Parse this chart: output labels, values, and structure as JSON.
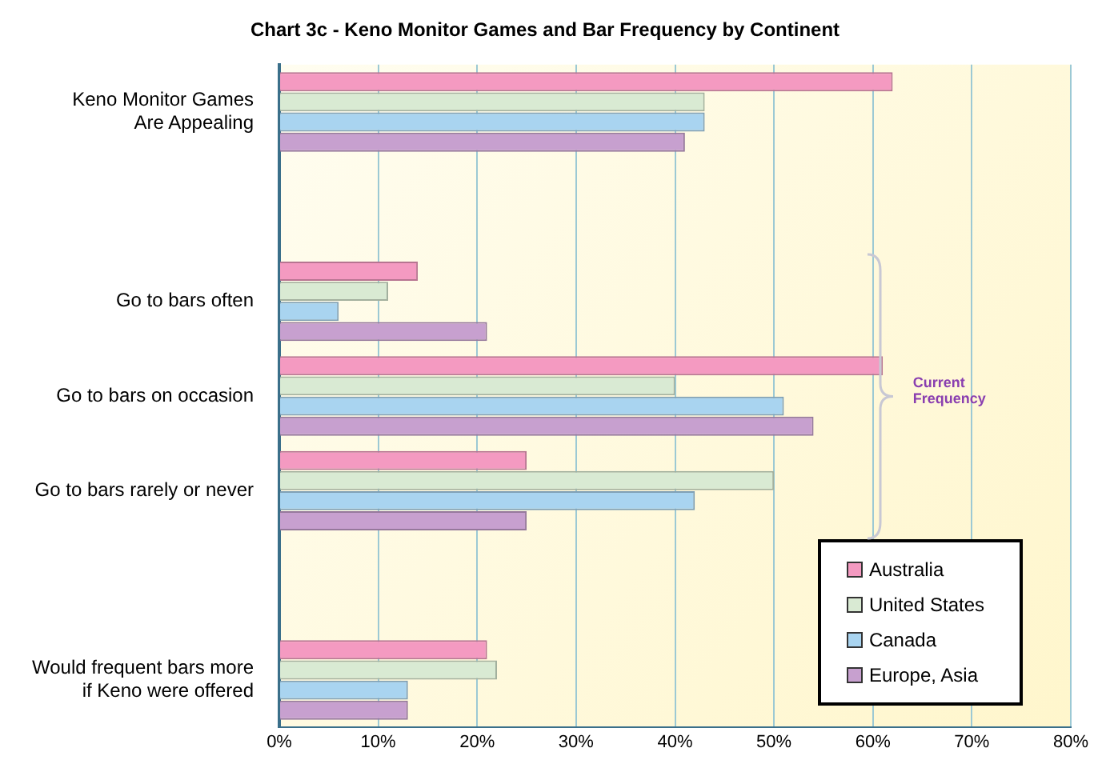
{
  "chart_data": {
    "type": "bar",
    "orientation": "horizontal",
    "title": "Chart 3c - Keno Monitor Games and Bar Frequency by Continent",
    "categories": [
      "Keno Monitor Games\nAre Appealing",
      null,
      "Go to bars often",
      "Go to bars on occasion",
      "Go to bars rarely or never",
      null,
      "Would frequent bars more\nif Keno were offered"
    ],
    "series": [
      {
        "name": "Australia",
        "color": "#f49ac1",
        "values": [
          62,
          null,
          14,
          61,
          25,
          null,
          21
        ]
      },
      {
        "name": "United States",
        "color": "#d9ead3",
        "values": [
          43,
          null,
          11,
          40,
          50,
          null,
          22
        ]
      },
      {
        "name": "Canada",
        "color": "#a9d4f0",
        "values": [
          43,
          null,
          6,
          51,
          42,
          null,
          13
        ]
      },
      {
        "name": "Europe, Asia",
        "color": "#c7a0cf",
        "values": [
          41,
          null,
          21,
          54,
          25,
          null,
          13
        ]
      }
    ],
    "xlim": [
      0,
      80
    ],
    "xticks": [
      {
        "value": 0,
        "label": "0%"
      },
      {
        "value": 10,
        "label": "10%"
      },
      {
        "value": 20,
        "label": "20%"
      },
      {
        "value": 30,
        "label": "30%"
      },
      {
        "value": 40,
        "label": "40%"
      },
      {
        "value": 50,
        "label": "50%"
      },
      {
        "value": 60,
        "label": "60%"
      },
      {
        "value": 70,
        "label": "70%"
      },
      {
        "value": 80,
        "label": "80%"
      }
    ],
    "grid": "x",
    "legend": "bottom right",
    "annotations": [
      "Current Frequency"
    ]
  }
}
